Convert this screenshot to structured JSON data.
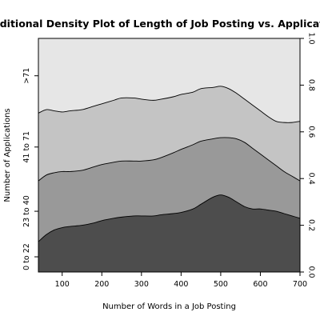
{
  "chart_data": {
    "type": "area",
    "subtype": "conditional-density",
    "title": "Conditional Density Plot of Length of Job Posting vs. Application",
    "xlabel": "Number of Words in a Job Posting",
    "ylabel": "Number of Applications",
    "xlim": [
      40,
      700
    ],
    "ylim": [
      0,
      1
    ],
    "x_ticks": [
      100,
      200,
      300,
      400,
      500,
      600,
      700
    ],
    "y_right_ticks": [
      "0.0",
      "0.2",
      "0.4",
      "0.6",
      "0.8",
      "1.0"
    ],
    "categories": [
      "0 to 22",
      "23 to 40",
      "41 to 71",
      ">71"
    ],
    "fill_colors": [
      "#4d4d4d",
      "#999999",
      "#c4c4c4",
      "#e6e6e6"
    ],
    "x": [
      40,
      60,
      80,
      100,
      120,
      150,
      180,
      200,
      230,
      250,
      280,
      300,
      330,
      350,
      380,
      400,
      430,
      450,
      480,
      500,
      520,
      540,
      560,
      580,
      600,
      620,
      640,
      660,
      680,
      700
    ],
    "boundaries": [
      {
        "name": "0 to 22 | 23 to 40",
        "values": [
          0.13,
          0.16,
          0.18,
          0.19,
          0.195,
          0.2,
          0.21,
          0.22,
          0.23,
          0.235,
          0.24,
          0.24,
          0.24,
          0.245,
          0.25,
          0.255,
          0.27,
          0.29,
          0.32,
          0.33,
          0.32,
          0.3,
          0.28,
          0.27,
          0.27,
          0.265,
          0.26,
          0.25,
          0.24,
          0.23
        ]
      },
      {
        "name": "23 to 40 | 41 to 71",
        "values": [
          0.39,
          0.415,
          0.425,
          0.43,
          0.43,
          0.435,
          0.45,
          0.46,
          0.47,
          0.475,
          0.475,
          0.475,
          0.48,
          0.49,
          0.51,
          0.525,
          0.545,
          0.56,
          0.57,
          0.575,
          0.575,
          0.57,
          0.555,
          0.53,
          0.505,
          0.48,
          0.455,
          0.43,
          0.41,
          0.39
        ]
      },
      {
        "name": "41 to 71 | >71",
        "values": [
          0.68,
          0.695,
          0.69,
          0.685,
          0.69,
          0.695,
          0.71,
          0.72,
          0.735,
          0.745,
          0.745,
          0.74,
          0.735,
          0.74,
          0.75,
          0.76,
          0.77,
          0.785,
          0.79,
          0.795,
          0.785,
          0.765,
          0.74,
          0.715,
          0.69,
          0.665,
          0.645,
          0.64,
          0.64,
          0.645
        ]
      }
    ]
  }
}
